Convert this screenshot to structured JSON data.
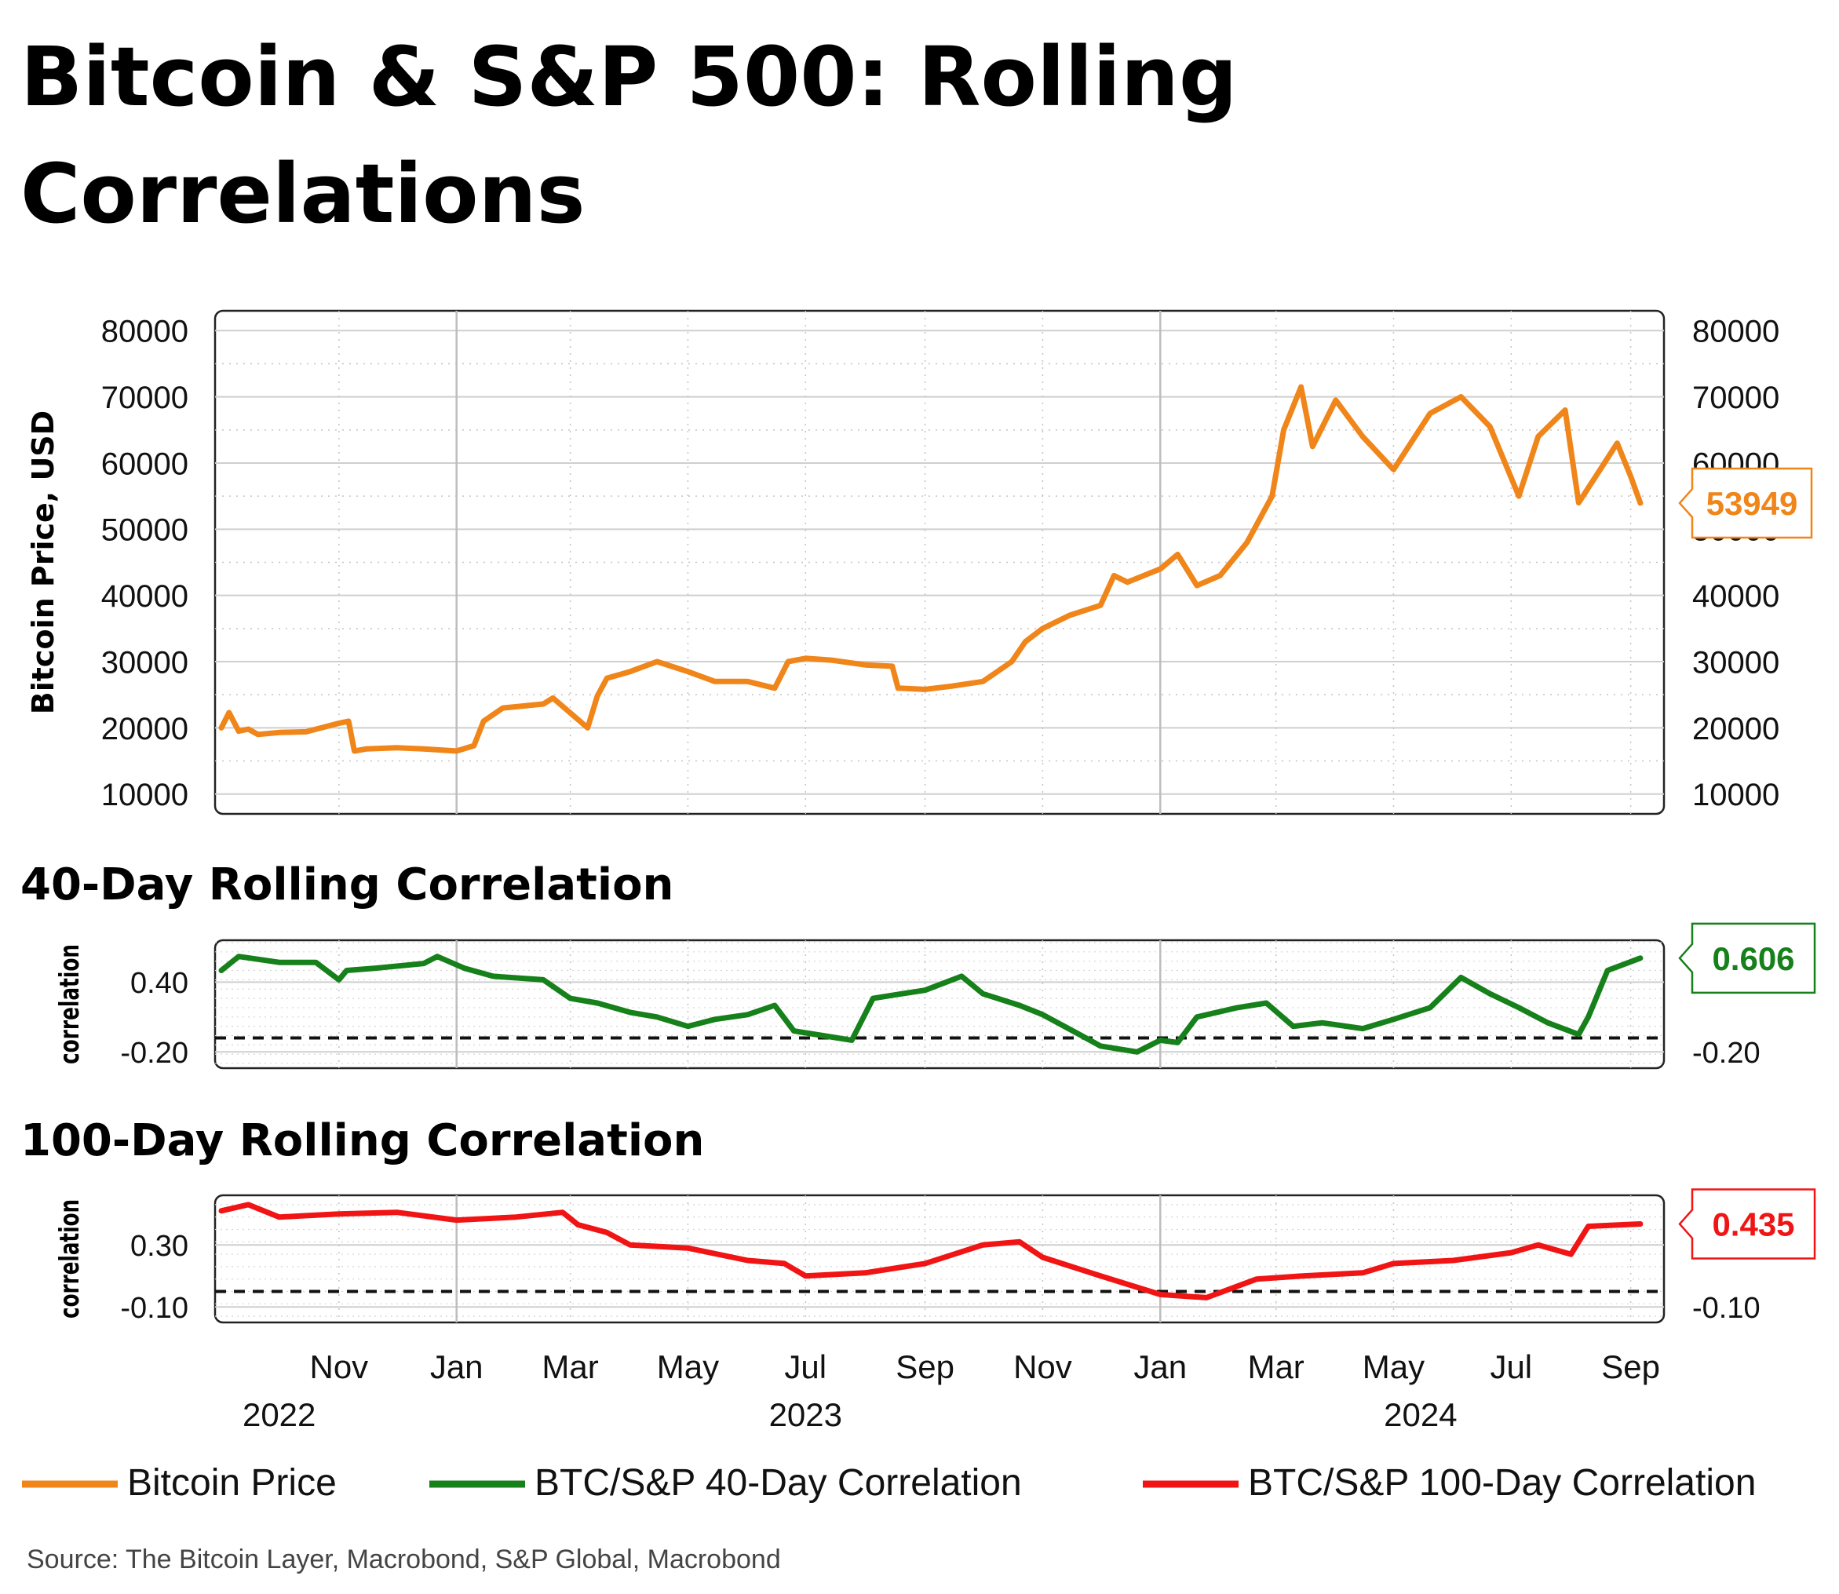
{
  "title_line1": "Bitcoin & S&P 500: Rolling",
  "title_line2": "Correlations",
  "sub40_title": "40-Day Rolling Correlation",
  "sub100_title": "100-Day Rolling Correlation",
  "source": "Source: The Bitcoin Layer, Macrobond, S&P Global, Macrobond",
  "colors": {
    "btc": "#f08519",
    "c40": "#16801a",
    "c100": "#f01414"
  },
  "legend": [
    {
      "label": "Bitcoin Price",
      "color": "#f08519"
    },
    {
      "label": "BTC/S&P 40-Day Correlation",
      "color": "#16801a"
    },
    {
      "label": "BTC/S&P 100-Day Correlation",
      "color": "#f01414"
    }
  ],
  "chart_data": [
    {
      "type": "line",
      "ylabel": "Bitcoin Price, USD",
      "ylim": [
        7000,
        83000
      ],
      "yticks": [
        "80000",
        "70000",
        "60000",
        "50000",
        "40000",
        "30000",
        "20000",
        "10000"
      ],
      "last_value_label": "53949",
      "grid": true,
      "x": [
        "2022-09-01",
        "2022-09-05",
        "2022-09-10",
        "2022-09-15",
        "2022-09-20",
        "2022-10-01",
        "2022-10-15",
        "2022-11-01",
        "2022-11-06",
        "2022-11-09",
        "2022-11-15",
        "2022-12-01",
        "2022-12-15",
        "2023-01-01",
        "2023-01-10",
        "2023-01-15",
        "2023-01-25",
        "2023-02-15",
        "2023-02-20",
        "2023-03-10",
        "2023-03-15",
        "2023-03-20",
        "2023-04-01",
        "2023-04-15",
        "2023-05-01",
        "2023-05-15",
        "2023-06-01",
        "2023-06-15",
        "2023-06-22",
        "2023-07-01",
        "2023-07-15",
        "2023-08-01",
        "2023-08-15",
        "2023-08-18",
        "2023-09-01",
        "2023-09-15",
        "2023-10-01",
        "2023-10-16",
        "2023-10-23",
        "2023-11-01",
        "2023-11-15",
        "2023-12-01",
        "2023-12-08",
        "2023-12-15",
        "2024-01-01",
        "2024-01-10",
        "2024-01-20",
        "2024-02-01",
        "2024-02-15",
        "2024-02-28",
        "2024-03-05",
        "2024-03-14",
        "2024-03-20",
        "2024-04-01",
        "2024-04-15",
        "2024-05-01",
        "2024-05-20",
        "2024-06-05",
        "2024-06-20",
        "2024-07-05",
        "2024-07-15",
        "2024-07-29",
        "2024-08-05",
        "2024-08-15",
        "2024-08-25",
        "2024-09-01",
        "2024-09-06"
      ],
      "series": [
        {
          "values": [
            20000,
            22300,
            19500,
            19800,
            19000,
            19300,
            19400,
            20700,
            21000,
            16500,
            16800,
            17000,
            16800,
            16500,
            17300,
            21000,
            23000,
            23600,
            24500,
            20000,
            24800,
            27500,
            28500,
            30000,
            28500,
            27000,
            27000,
            26000,
            30000,
            30500,
            30200,
            29500,
            29300,
            26000,
            25800,
            26300,
            27000,
            30000,
            33000,
            35000,
            37000,
            38500,
            43000,
            42000,
            44000,
            46200,
            41500,
            43000,
            48000,
            55000,
            65000,
            71500,
            62500,
            69500,
            64000,
            59000,
            67500,
            70000,
            65500,
            55000,
            64000,
            68000,
            54000,
            58500,
            63000,
            58000,
            53949
          ]
        }
      ]
    },
    {
      "type": "line",
      "title": "40-Day Rolling Correlation",
      "ylabel": "correlation",
      "ylim": [
        -0.34,
        0.76
      ],
      "yticks": [
        "0.40",
        "-0.20"
      ],
      "reference_line": -0.08,
      "last_value_label": "0.606",
      "grid": true,
      "x": [
        "2022-09-01",
        "2022-09-10",
        "2022-10-01",
        "2022-10-20",
        "2022-11-01",
        "2022-11-05",
        "2022-11-20",
        "2022-12-15",
        "2022-12-22",
        "2023-01-05",
        "2023-01-20",
        "2023-02-15",
        "2023-03-01",
        "2023-03-15",
        "2023-04-01",
        "2023-04-15",
        "2023-05-01",
        "2023-05-15",
        "2023-06-01",
        "2023-06-15",
        "2023-06-25",
        "2023-07-10",
        "2023-07-25",
        "2023-08-05",
        "2023-08-20",
        "2023-09-01",
        "2023-09-20",
        "2023-10-01",
        "2023-10-20",
        "2023-11-01",
        "2023-11-20",
        "2023-12-01",
        "2023-12-20",
        "2024-01-01",
        "2024-01-10",
        "2024-01-20",
        "2024-02-10",
        "2024-02-25",
        "2024-03-10",
        "2024-03-25",
        "2024-04-15",
        "2024-05-01",
        "2024-05-20",
        "2024-06-05",
        "2024-06-20",
        "2024-07-05",
        "2024-07-20",
        "2024-08-05",
        "2024-08-10",
        "2024-08-20",
        "2024-09-06"
      ],
      "series": [
        {
          "values": [
            0.5,
            0.62,
            0.57,
            0.57,
            0.42,
            0.5,
            0.52,
            0.56,
            0.62,
            0.52,
            0.45,
            0.42,
            0.26,
            0.22,
            0.14,
            0.1,
            0.02,
            0.08,
            0.12,
            0.2,
            -0.02,
            -0.06,
            -0.1,
            0.26,
            0.3,
            0.33,
            0.45,
            0.3,
            0.2,
            0.12,
            -0.05,
            -0.15,
            -0.2,
            -0.1,
            -0.12,
            0.1,
            0.18,
            0.22,
            0.02,
            0.05,
            0.0,
            0.08,
            0.18,
            0.44,
            0.3,
            0.18,
            0.05,
            -0.05,
            0.1,
            0.5,
            0.606
          ]
        }
      ]
    },
    {
      "type": "line",
      "title": "100-Day Rolling Correlation",
      "ylabel": "correlation",
      "ylim": [
        -0.2,
        0.62
      ],
      "yticks": [
        "0.30",
        "-0.10"
      ],
      "reference_line": 0.0,
      "last_value_label": "0.435",
      "grid": true,
      "x": [
        "2022-09-01",
        "2022-09-15",
        "2022-10-01",
        "2022-11-01",
        "2022-12-01",
        "2023-01-01",
        "2023-02-01",
        "2023-02-25",
        "2023-03-05",
        "2023-03-20",
        "2023-04-01",
        "2023-05-01",
        "2023-06-01",
        "2023-06-20",
        "2023-07-01",
        "2023-08-01",
        "2023-09-01",
        "2023-10-01",
        "2023-10-20",
        "2023-11-01",
        "2023-12-01",
        "2024-01-01",
        "2024-01-25",
        "2024-02-20",
        "2024-03-15",
        "2024-04-15",
        "2024-05-01",
        "2024-06-01",
        "2024-07-01",
        "2024-07-15",
        "2024-08-01",
        "2024-08-10",
        "2024-09-06"
      ],
      "series": [
        {
          "values": [
            0.52,
            0.56,
            0.48,
            0.5,
            0.51,
            0.46,
            0.48,
            0.51,
            0.43,
            0.38,
            0.3,
            0.28,
            0.2,
            0.18,
            0.1,
            0.12,
            0.18,
            0.3,
            0.32,
            0.22,
            0.1,
            -0.02,
            -0.04,
            0.08,
            0.1,
            0.12,
            0.18,
            0.2,
            0.25,
            0.3,
            0.24,
            0.42,
            0.435
          ]
        }
      ]
    }
  ],
  "x_axis": {
    "months": [
      "Nov",
      "Jan",
      "Mar",
      "May",
      "Jul",
      "Sep",
      "Nov",
      "Jan",
      "Mar",
      "May",
      "Jul",
      "Sep"
    ],
    "month_dates": [
      "2022-11-01",
      "2023-01-01",
      "2023-03-01",
      "2023-05-01",
      "2023-07-01",
      "2023-09-01",
      "2023-11-01",
      "2024-01-01",
      "2024-03-01",
      "2024-05-01",
      "2024-07-01",
      "2024-09-01"
    ],
    "years": [
      "2022",
      "2023",
      "2024"
    ],
    "year_dates": [
      "2022-10-01",
      "2023-07-01",
      "2024-05-15"
    ]
  }
}
